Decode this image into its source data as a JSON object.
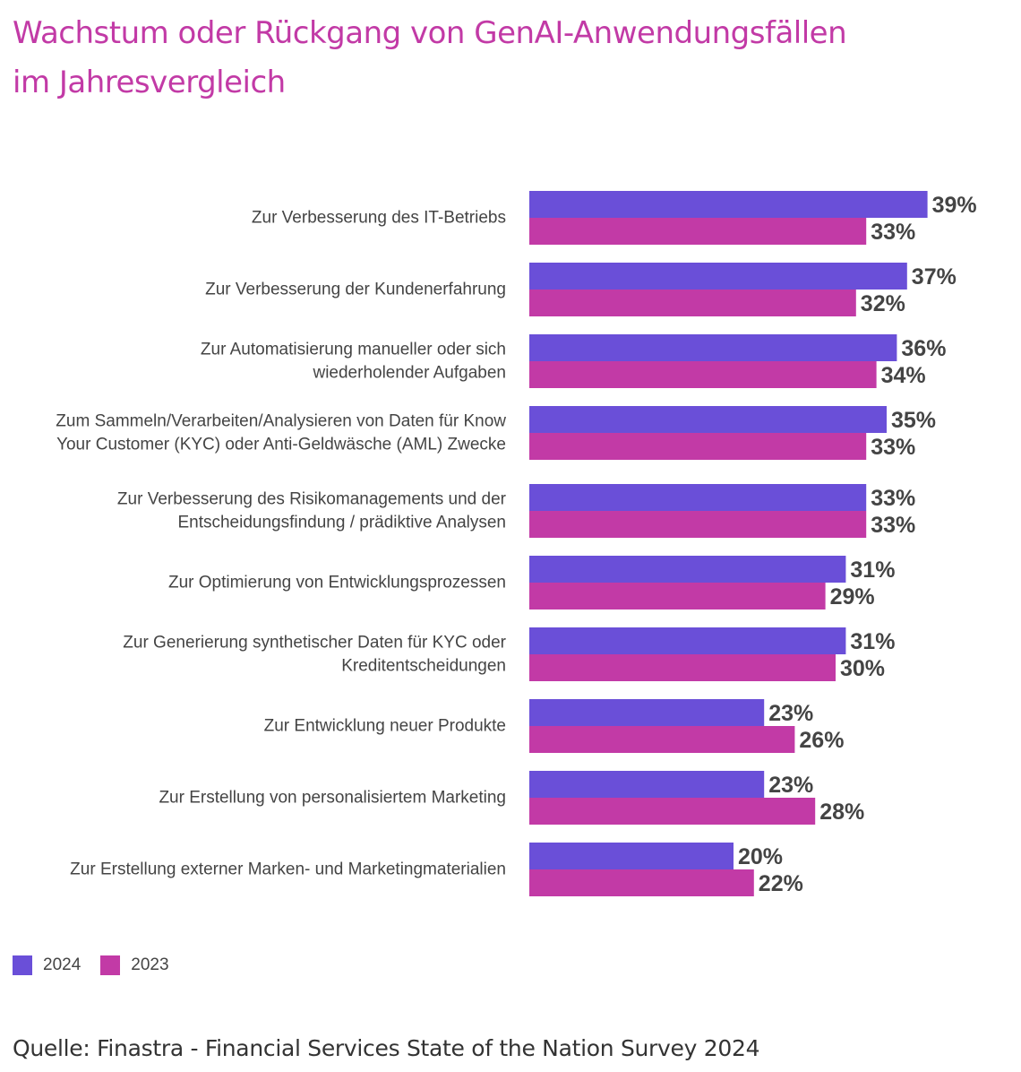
{
  "title": {
    "line1": "Wachstum oder Rückgang von GenAI-Anwendungsfällen",
    "line2": "im Jahresvergleich"
  },
  "source": "Quelle: Finastra - Financial Services State of the Nation Survey 2024",
  "colors": {
    "2024": "#6a4fd8",
    "2023": "#c23aa6"
  },
  "legend": [
    {
      "label": "2024",
      "color": "#6a4fd8"
    },
    {
      "label": "2023",
      "color": "#c23aa6"
    }
  ],
  "chart_data": {
    "type": "bar",
    "orientation": "horizontal",
    "categories": [
      [
        "Zur Verbesserung des IT-Betriebs"
      ],
      [
        "Zur Verbesserung der Kundenerfahrung"
      ],
      [
        "Zur Automatisierung manueller oder sich",
        "wiederholender Aufgaben"
      ],
      [
        "Zum Sammeln/Verarbeiten/Analysieren von Daten für Know",
        "Your Customer (KYC) oder Anti-Geldwäsche (AML) Zwecke"
      ],
      [
        "Zur Verbesserung des Risikomanagements und der",
        "Entscheidungsfindung / prädiktive Analysen"
      ],
      [
        "Zur Optimierung von Entwicklungsprozessen"
      ],
      [
        "Zur Generierung synthetischer Daten für KYC oder",
        "Kreditentscheidungen"
      ],
      [
        "Zur Entwicklung neuer Produkte"
      ],
      [
        "Zur Erstellung von personalisiertem Marketing"
      ],
      [
        "Zur Erstellung externer Marken- und Marketingmaterialien"
      ]
    ],
    "series": [
      {
        "name": "2024",
        "color": "#6a4fd8",
        "values": [
          39,
          37,
          36,
          35,
          33,
          31,
          31,
          23,
          23,
          20
        ],
        "labels": [
          "39%",
          "37%",
          "36%",
          "35%",
          "33%",
          "31%",
          "31%",
          "23%",
          "23%",
          "20%"
        ]
      },
      {
        "name": "2023",
        "color": "#c23aa6",
        "values": [
          33,
          32,
          34,
          33,
          33,
          29,
          30,
          26,
          28,
          22
        ],
        "labels": [
          "33%",
          "32%",
          "34%",
          "33%",
          "33%",
          "29%",
          "30%",
          "26%",
          "28%",
          "22%"
        ]
      }
    ],
    "unit": "%",
    "grid": false,
    "legend_position": "bottom-left"
  }
}
